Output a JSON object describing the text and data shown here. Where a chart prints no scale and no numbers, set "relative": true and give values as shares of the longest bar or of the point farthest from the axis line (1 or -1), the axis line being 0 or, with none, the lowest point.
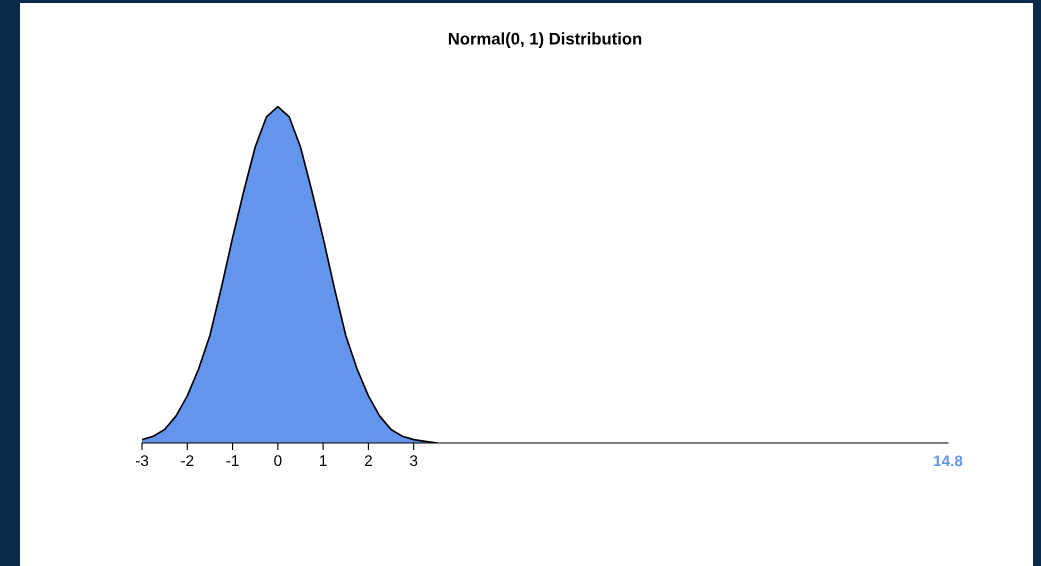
{
  "chart_data": {
    "type": "area",
    "title": "Normal(0, 1) Distribution",
    "relative": true,
    "x": [
      -3,
      -2.75,
      -2.5,
      -2.25,
      -2,
      -1.75,
      -1.5,
      -1.25,
      -1,
      -0.75,
      -0.5,
      -0.25,
      0,
      0.25,
      0.5,
      0.75,
      1,
      1.25,
      1.5,
      1.75,
      2,
      2.25,
      2.5,
      2.75,
      3,
      3.25,
      3.5
    ],
    "series": [
      {
        "color": "#6495ed",
        "values": [
          0.01,
          0.02,
          0.04,
          0.08,
          0.14,
          0.22,
          0.32,
          0.46,
          0.61,
          0.75,
          0.88,
          0.97,
          1,
          0.97,
          0.88,
          0.75,
          0.61,
          0.46,
          0.32,
          0.22,
          0.14,
          0.08,
          0.04,
          0.02,
          0.01,
          0.005,
          0
        ]
      }
    ],
    "xlim": [
      -3,
      14.8
    ],
    "xticks": [
      -3,
      -2,
      -1,
      0,
      1,
      2,
      3
    ],
    "annotations": [
      "14.8"
    ],
    "grid": false
  }
}
